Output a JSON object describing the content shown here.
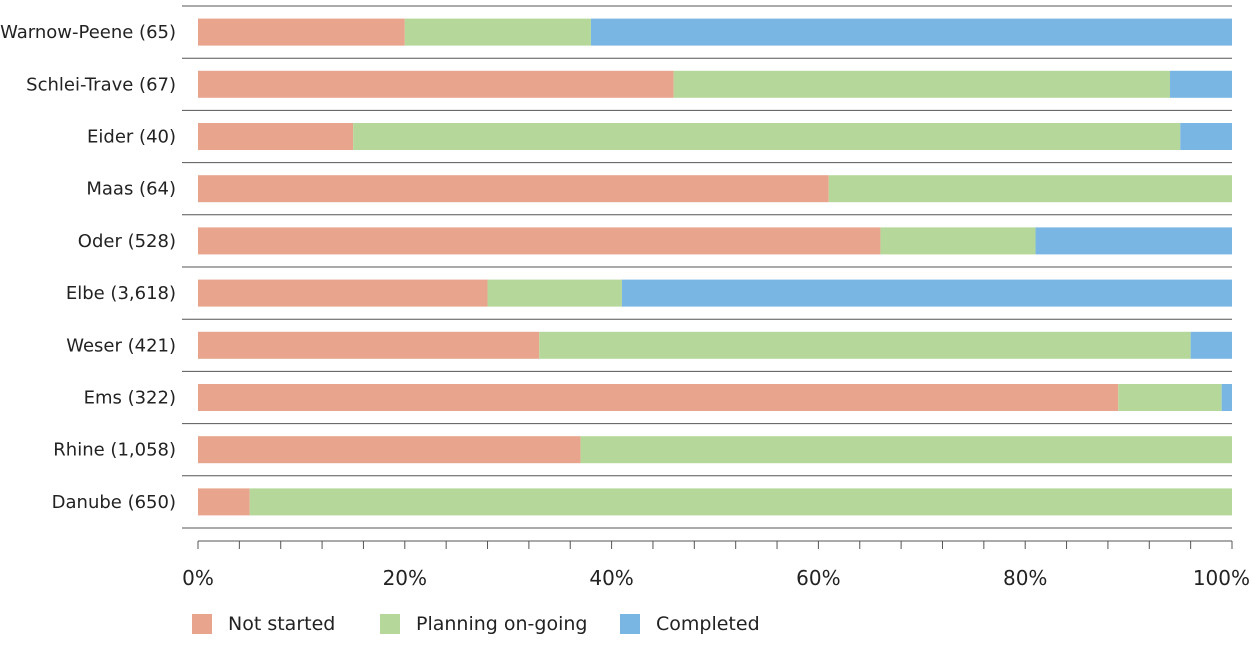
{
  "chart_data": {
    "type": "bar",
    "orientation": "horizontal",
    "stacked": true,
    "categories": [
      "Warnow-Peene (65)",
      "Schlei-Trave (67)",
      "Eider (40)",
      "Maas (64)",
      "Oder (528)",
      "Elbe (3,618)",
      "Weser (421)",
      "Ems (322)",
      "Rhine (1,058)",
      "Danube (650)"
    ],
    "series": [
      {
        "name": "Not started",
        "color": "#e8a48d",
        "values": [
          20,
          46,
          15,
          61,
          66,
          28,
          33,
          89,
          37,
          5
        ]
      },
      {
        "name": "Planning on-going",
        "color": "#b5d89a",
        "values": [
          18,
          48,
          80,
          39,
          15,
          13,
          63,
          10,
          63,
          95
        ]
      },
      {
        "name": "Completed",
        "color": "#7ab6e3",
        "values": [
          62,
          6,
          5,
          0,
          19,
          59,
          4,
          1,
          0,
          0
        ]
      }
    ],
    "x_ticks": [
      "0%",
      "20%",
      "40%",
      "60%",
      "80%",
      "100%"
    ],
    "xlim": [
      0,
      100
    ],
    "title": "",
    "xlabel": "",
    "ylabel": "",
    "grid": false,
    "legend_position": "bottom"
  }
}
